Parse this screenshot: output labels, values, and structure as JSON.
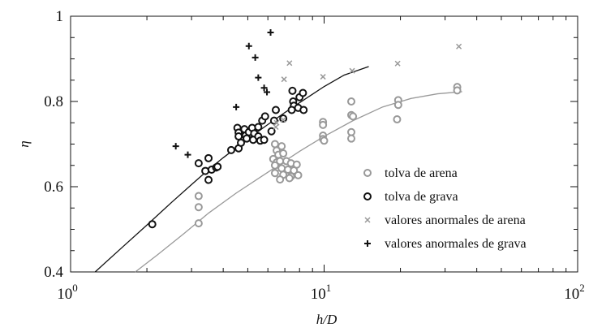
{
  "chart_data": {
    "type": "scatter",
    "xscale": "log",
    "xlim": [
      1,
      100
    ],
    "ylim": [
      0.4,
      1.0
    ],
    "xlabel": "h/D",
    "ylabel": "η",
    "x_ticks": [
      1,
      10,
      100
    ],
    "x_tick_labels": [
      {
        "base": "10",
        "exp": "0"
      },
      {
        "base": "10",
        "exp": "1"
      },
      {
        "base": "10",
        "exp": "2"
      }
    ],
    "y_ticks": [
      0.4,
      0.6,
      0.8,
      1.0
    ],
    "y_tick_labels": [
      "0.4",
      "0.6",
      "0.8",
      "1"
    ],
    "grid": false,
    "legend_position": "center-right",
    "series": [
      {
        "name": "tolva de arena",
        "marker": "open-circle",
        "color": "#999999",
        "points": [
          [
            3.2,
            0.578
          ],
          [
            3.2,
            0.552
          ],
          [
            3.2,
            0.514
          ],
          [
            6.4,
            0.7
          ],
          [
            6.5,
            0.685
          ],
          [
            6.6,
            0.675
          ],
          [
            6.8,
            0.695
          ],
          [
            6.9,
            0.678
          ],
          [
            6.3,
            0.665
          ],
          [
            6.5,
            0.657
          ],
          [
            6.7,
            0.66
          ],
          [
            7.1,
            0.66
          ],
          [
            7.4,
            0.655
          ],
          [
            7.8,
            0.652
          ],
          [
            6.4,
            0.65
          ],
          [
            6.8,
            0.643
          ],
          [
            7.2,
            0.64
          ],
          [
            7.6,
            0.638
          ],
          [
            6.4,
            0.632
          ],
          [
            6.9,
            0.628
          ],
          [
            7.4,
            0.624
          ],
          [
            7.9,
            0.627
          ],
          [
            6.7,
            0.617
          ],
          [
            7.3,
            0.62
          ],
          [
            9.9,
            0.752
          ],
          [
            9.9,
            0.745
          ],
          [
            9.9,
            0.72
          ],
          [
            9.9,
            0.712
          ],
          [
            10.0,
            0.708
          ],
          [
            12.8,
            0.8
          ],
          [
            12.8,
            0.768
          ],
          [
            13.0,
            0.765
          ],
          [
            12.8,
            0.728
          ],
          [
            12.8,
            0.713
          ],
          [
            19.6,
            0.803
          ],
          [
            19.6,
            0.792
          ],
          [
            19.4,
            0.758
          ],
          [
            33.5,
            0.834
          ],
          [
            33.5,
            0.826
          ]
        ]
      },
      {
        "name": "tolva de grava",
        "marker": "open-circle",
        "color": "#111111",
        "points": [
          [
            2.1,
            0.512
          ],
          [
            3.2,
            0.655
          ],
          [
            3.4,
            0.637
          ],
          [
            3.5,
            0.667
          ],
          [
            3.6,
            0.64
          ],
          [
            3.5,
            0.616
          ],
          [
            3.75,
            0.645
          ],
          [
            3.8,
            0.647
          ],
          [
            4.3,
            0.686
          ],
          [
            4.6,
            0.69
          ],
          [
            4.55,
            0.738
          ],
          [
            4.6,
            0.727
          ],
          [
            4.6,
            0.718
          ],
          [
            4.85,
            0.735
          ],
          [
            4.9,
            0.72
          ],
          [
            4.95,
            0.713
          ],
          [
            4.7,
            0.703
          ],
          [
            5.05,
            0.728
          ],
          [
            5.2,
            0.738
          ],
          [
            5.3,
            0.725
          ],
          [
            5.25,
            0.71
          ],
          [
            5.5,
            0.74
          ],
          [
            5.5,
            0.718
          ],
          [
            5.6,
            0.708
          ],
          [
            5.7,
            0.755
          ],
          [
            5.85,
            0.765
          ],
          [
            5.8,
            0.71
          ],
          [
            6.2,
            0.73
          ],
          [
            6.35,
            0.755
          ],
          [
            6.45,
            0.78
          ],
          [
            6.9,
            0.76
          ],
          [
            7.5,
            0.825
          ],
          [
            7.55,
            0.8
          ],
          [
            7.6,
            0.79
          ],
          [
            7.45,
            0.78
          ],
          [
            7.9,
            0.785
          ],
          [
            8.0,
            0.81
          ],
          [
            8.25,
            0.82
          ],
          [
            8.3,
            0.78
          ]
        ]
      },
      {
        "name": "valores anormales de arena",
        "marker": "x",
        "color": "#999999",
        "points": [
          [
            6.45,
            0.74
          ],
          [
            6.5,
            0.75
          ],
          [
            6.9,
            0.757
          ],
          [
            6.95,
            0.852
          ],
          [
            7.3,
            0.89
          ],
          [
            9.9,
            0.858
          ],
          [
            12.9,
            0.872
          ],
          [
            19.5,
            0.889
          ],
          [
            34.0,
            0.929
          ]
        ]
      },
      {
        "name": "valores anormales de grava",
        "marker": "plus",
        "color": "#111111",
        "points": [
          [
            2.6,
            0.695
          ],
          [
            2.9,
            0.675
          ],
          [
            4.5,
            0.787
          ],
          [
            5.05,
            0.93
          ],
          [
            5.35,
            0.903
          ],
          [
            5.5,
            0.856
          ],
          [
            5.8,
            0.832
          ],
          [
            5.95,
            0.822
          ],
          [
            6.15,
            0.962
          ]
        ]
      }
    ],
    "fit_lines": [
      {
        "color": "#111111",
        "points": [
          [
            1.25,
            0.4
          ],
          [
            1.6,
            0.458
          ],
          [
            2.0,
            0.51
          ],
          [
            2.5,
            0.563
          ],
          [
            3.0,
            0.605
          ],
          [
            3.5,
            0.64
          ],
          [
            4.0,
            0.668
          ],
          [
            5.0,
            0.712
          ],
          [
            6.0,
            0.746
          ],
          [
            7.0,
            0.774
          ],
          [
            8.0,
            0.797
          ],
          [
            10.0,
            0.835
          ],
          [
            12.0,
            0.862
          ],
          [
            15.0,
            0.882
          ]
        ]
      },
      {
        "color": "#999999",
        "points": [
          [
            1.8,
            0.4
          ],
          [
            2.2,
            0.44
          ],
          [
            2.8,
            0.49
          ],
          [
            3.5,
            0.538
          ],
          [
            4.5,
            0.585
          ],
          [
            6.0,
            0.634
          ],
          [
            8.0,
            0.683
          ],
          [
            10.0,
            0.718
          ],
          [
            13.0,
            0.755
          ],
          [
            17.0,
            0.787
          ],
          [
            22.0,
            0.807
          ],
          [
            28.0,
            0.818
          ],
          [
            35.0,
            0.823
          ]
        ]
      }
    ]
  }
}
